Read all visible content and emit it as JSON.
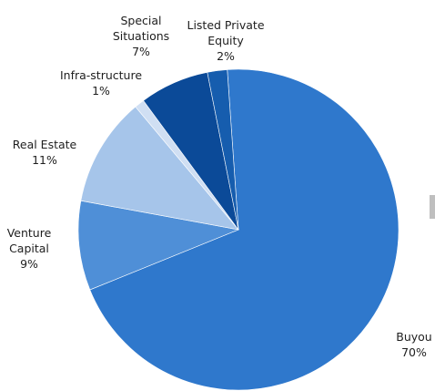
{
  "chart_data": {
    "type": "pie",
    "slices": [
      {
        "name": "Buyout",
        "value": 70,
        "color": "#2f78cc",
        "label_lines": [
          "Buyou",
          "70%"
        ]
      },
      {
        "name": "Venture Capital",
        "value": 9,
        "color": "#4f8fd7",
        "label_lines": [
          "Venture",
          "Capital",
          "9%"
        ]
      },
      {
        "name": "Real Estate",
        "value": 11,
        "color": "#a6c5ea",
        "label_lines": [
          "Real Estate",
          "11%"
        ]
      },
      {
        "name": "Infra-structure",
        "value": 1,
        "color": "#d0dff3",
        "label_lines": [
          "Infra-structure",
          "1%"
        ]
      },
      {
        "name": "Special Situations",
        "value": 7,
        "color": "#0b4a98",
        "label_lines": [
          "Special",
          "Situations",
          "7%"
        ]
      },
      {
        "name": "Listed Private Equity",
        "value": 2,
        "color": "#165dae",
        "label_lines": [
          "Listed Private",
          "Equity",
          "2%"
        ]
      }
    ],
    "title": "",
    "legend": "none"
  }
}
